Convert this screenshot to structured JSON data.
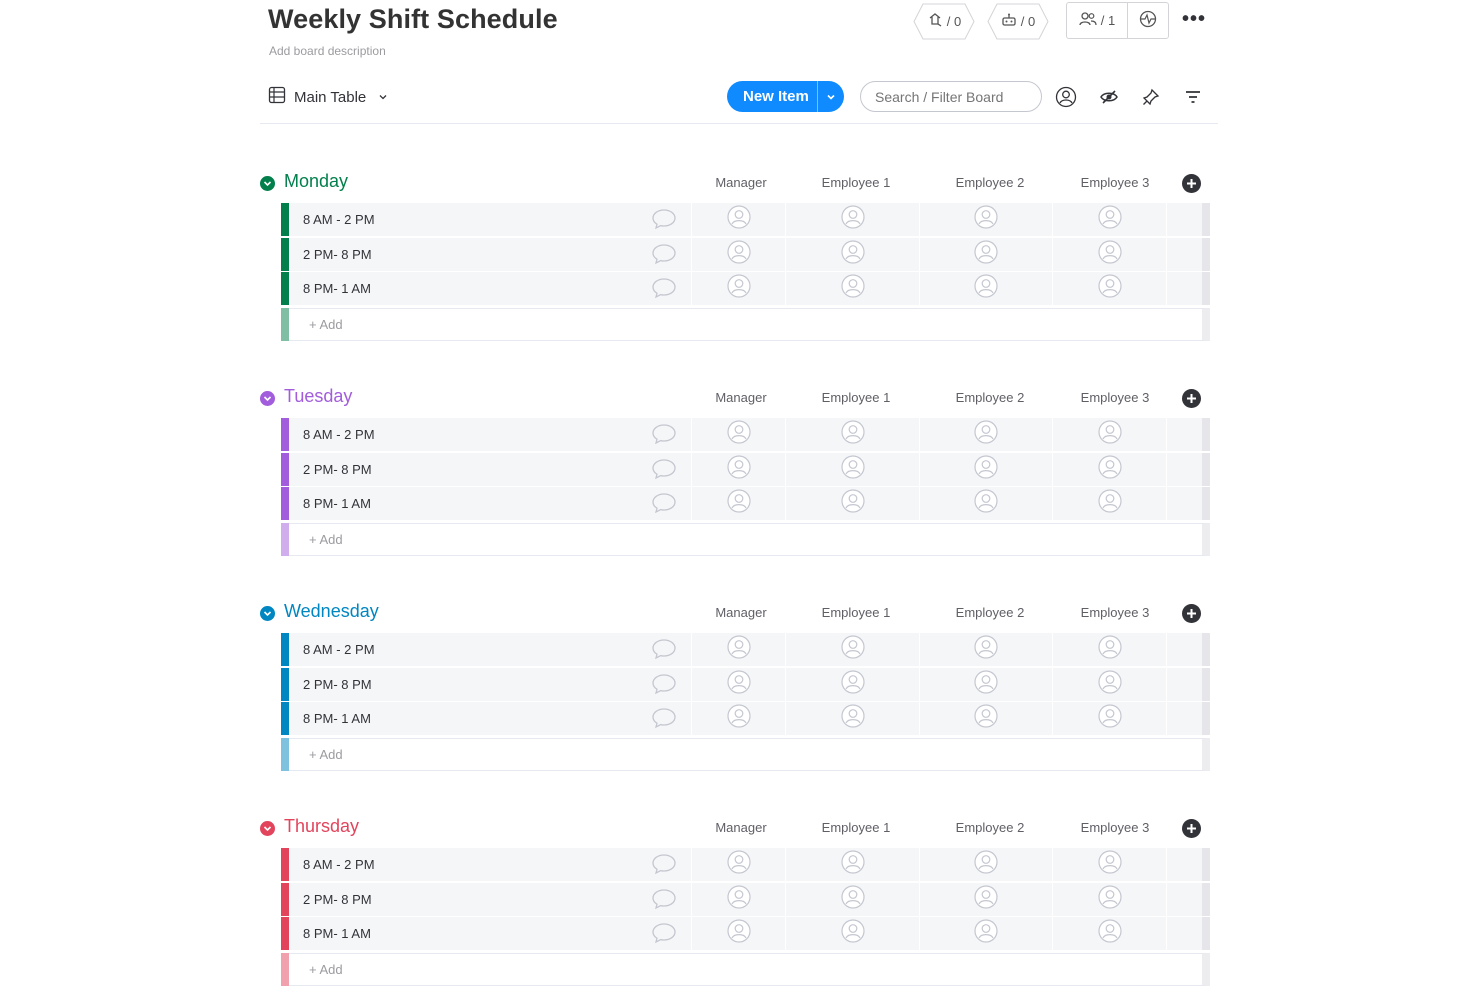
{
  "board": {
    "title": "Weekly Shift Schedule",
    "description": "Add board description"
  },
  "header": {
    "badges": [
      {
        "icon": "activity-icon",
        "count": "/ 0"
      },
      {
        "icon": "integrations-icon",
        "count": "/ 0"
      }
    ],
    "members": {
      "icon": "members-icon",
      "count": "/ 1"
    },
    "activity_icon": "activity-log-icon",
    "more_label": "•••"
  },
  "toolbar": {
    "view_label": "Main Table",
    "new_item_label": "New Item",
    "search_placeholder": "Search / Filter Board"
  },
  "columns": [
    "Manager",
    "Employee 1",
    "Employee 2",
    "Employee 3"
  ],
  "groups": [
    {
      "title": "Monday",
      "color": "#037f4c",
      "light_color": "#81bfa5",
      "rows": [
        "8 AM - 2 PM",
        "2 PM- 8 PM",
        "8 PM- 1 AM"
      ],
      "add_label": "+ Add"
    },
    {
      "title": "Tuesday",
      "color": "#a25ddc",
      "light_color": "#d0aeed",
      "rows": [
        "8 AM - 2 PM",
        "2 PM- 8 PM",
        "8 PM- 1 AM"
      ],
      "add_label": "+ Add"
    },
    {
      "title": "Wednesday",
      "color": "#0086c0",
      "light_color": "#7fc2df",
      "rows": [
        "8 AM - 2 PM",
        "2 PM- 8 PM",
        "8 PM- 1 AM"
      ],
      "add_label": "+ Add"
    },
    {
      "title": "Thursday",
      "color": "#e2445c",
      "light_color": "#f0a1ad",
      "rows": [
        "8 AM - 2 PM",
        "2 PM- 8 PM",
        "8 PM- 1 AM"
      ],
      "add_label": "+ Add"
    }
  ]
}
